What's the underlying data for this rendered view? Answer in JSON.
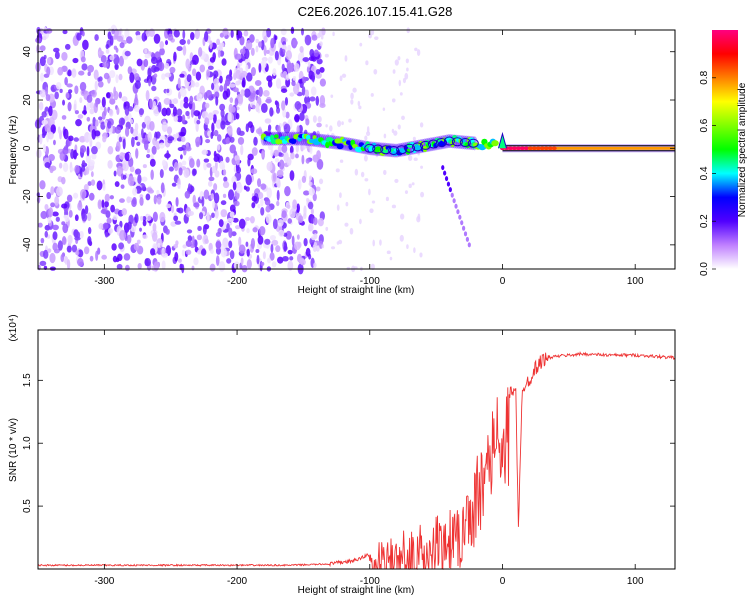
{
  "title": "C2E6.2026.107.15.41.G28",
  "chart_data": [
    {
      "type": "heatmap",
      "xlabel": "Height of straight line (km)",
      "ylabel": "Frequency (Hz)",
      "xlim": [
        -350,
        130
      ],
      "ylim": [
        -50,
        49
      ],
      "xticks": [
        -300,
        -200,
        -100,
        0,
        100
      ],
      "yticks": [
        -40,
        -20,
        0,
        20,
        40
      ],
      "colorbar": {
        "label": "Normalized spectral amplitude",
        "range": [
          0,
          1
        ],
        "ticks": [
          "0.0",
          "0.2",
          "0.4",
          "0.6",
          "0.8"
        ],
        "tick_values": [
          0.0,
          0.2,
          0.4,
          0.6,
          0.8
        ],
        "colors": [
          "#ffffff",
          "#c080ff",
          "#5000ff",
          "#0000ff",
          "#00ffff",
          "#00ff00",
          "#80ff00",
          "#ffff00",
          "#ff8000",
          "#ff0000",
          "#ff0080"
        ]
      },
      "features": {
        "noise_region_x": [
          -350,
          -150
        ],
        "signal_band": [
          {
            "x": -180,
            "f": 4
          },
          {
            "x": -150,
            "f": 4
          },
          {
            "x": -120,
            "f": 2
          },
          {
            "x": -100,
            "f": 0
          },
          {
            "x": -80,
            "f": -1
          },
          {
            "x": -60,
            "f": 1
          },
          {
            "x": -40,
            "f": 3
          },
          {
            "x": -20,
            "f": 2
          },
          {
            "x": 0,
            "f": 1
          },
          {
            "x": 20,
            "f": 0
          },
          {
            "x": 130,
            "f": 0
          }
        ],
        "spike_x": 0,
        "spike_peak_f": 6,
        "tail": {
          "x": [
            -45,
            -25
          ],
          "f": [
            -8,
            -40
          ]
        }
      }
    },
    {
      "type": "line",
      "xlabel": "Height of straight line (km)",
      "ylabel": "SNR (10 * v/v)",
      "multiplier": "(x10⁴)",
      "xlim": [
        -350,
        130
      ],
      "ylim": [
        0,
        1.9
      ],
      "xticks": [
        -300,
        -200,
        -100,
        0,
        100
      ],
      "yticks": [
        0.5,
        1.0,
        1.5
      ],
      "ytick_labels": [
        "0.5",
        "1.0",
        "1.5"
      ],
      "color": "#ee3333",
      "series": [
        {
          "x": [
            -350,
            -250,
            -160,
            -130,
            -110,
            -100,
            -90,
            -80,
            -70,
            -60,
            -50,
            -40,
            -30,
            -25,
            -20,
            -15,
            -10,
            -5,
            0,
            5,
            10,
            12,
            15,
            20,
            25,
            30,
            35,
            40,
            50,
            60,
            80,
            100,
            130
          ],
          "values": [
            0.03,
            0.03,
            0.03,
            0.04,
            0.07,
            0.12,
            0.17,
            0.2,
            0.24,
            0.28,
            0.32,
            0.4,
            0.5,
            0.65,
            0.8,
            0.95,
            1.1,
            1.2,
            1.3,
            1.4,
            1.45,
            0.3,
            1.45,
            1.5,
            1.6,
            1.66,
            1.68,
            1.69,
            1.7,
            1.71,
            1.7,
            1.7,
            1.68
          ]
        }
      ]
    }
  ]
}
